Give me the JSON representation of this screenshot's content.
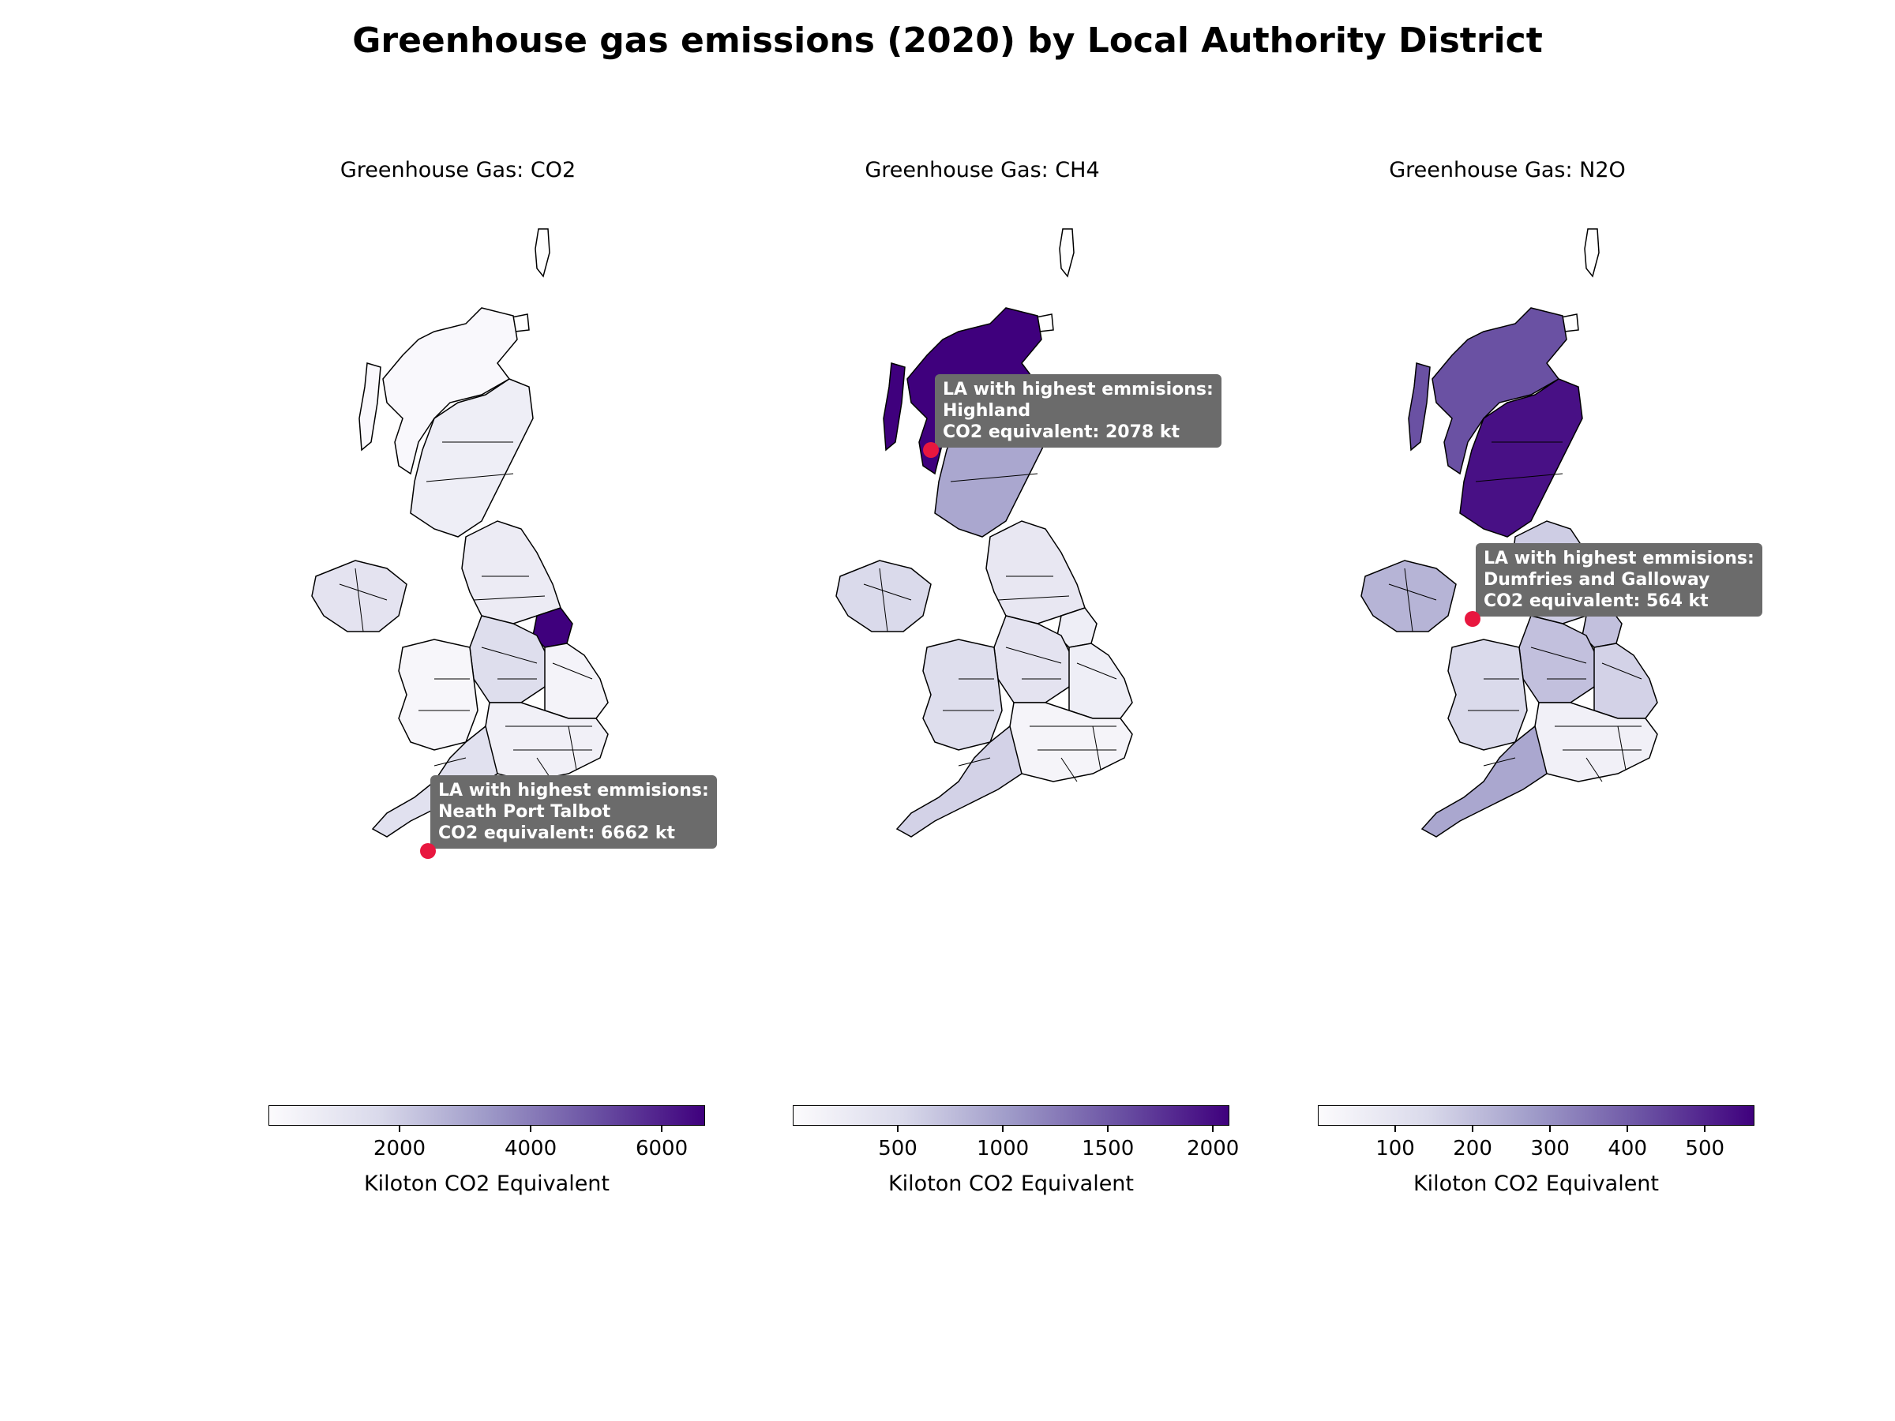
{
  "title": "Greenhouse gas emissions (2020) by Local Authority District",
  "colors": {
    "scale_low": "#fcfbfd",
    "scale_mid": "#9e9ac8",
    "scale_high": "#3f007d",
    "highlight_marker": "#e8173f",
    "callout_bg": "#6b6b6b",
    "border": "#000000"
  },
  "panels": [
    {
      "title": "Greenhouse Gas: CO2",
      "gas": "CO2",
      "scale_min": 0,
      "scale_max": 6662,
      "colorbar_ticks": [
        {
          "value": 2000,
          "label": "2000"
        },
        {
          "value": 4000,
          "label": "4000"
        },
        {
          "value": 6000,
          "label": "6000"
        }
      ],
      "colorbar_label": "Kiloton CO2 Equivalent",
      "callout": {
        "line1": "LA with highest emmisions:",
        "line2": "Neath Port Talbot",
        "line3": "CO2 equivalent: 6662 kt"
      },
      "highlight_region": "Neath Port Talbot",
      "region_shading": {
        "scotland_north": 0.02,
        "scotland_south": 0.1,
        "northern_ireland": 0.18,
        "north_england": 0.12,
        "humber": 1.0,
        "midlands": 0.22,
        "wales": 0.04,
        "southwest": 0.2,
        "southeast": 0.08,
        "east": 0.06
      }
    },
    {
      "title": "Greenhouse Gas: CH4",
      "gas": "CH4",
      "scale_min": 0,
      "scale_max": 2078,
      "colorbar_ticks": [
        {
          "value": 500,
          "label": "500"
        },
        {
          "value": 1000,
          "label": "1000"
        },
        {
          "value": 1500,
          "label": "1500"
        },
        {
          "value": 2000,
          "label": "2000"
        }
      ],
      "colorbar_label": "Kiloton CO2 Equivalent",
      "callout": {
        "line1": "LA with highest emmisions:",
        "line2": "Highland",
        "line3": "CO2 equivalent: 2078 kt"
      },
      "highlight_region": "Highland",
      "region_shading": {
        "scotland_north": 1.0,
        "scotland_south": 0.45,
        "northern_ireland": 0.25,
        "north_england": 0.15,
        "humber": 0.1,
        "midlands": 0.18,
        "wales": 0.22,
        "southwest": 0.28,
        "southeast": 0.05,
        "east": 0.1
      }
    },
    {
      "title": "Greenhouse Gas: N2O",
      "gas": "N2O",
      "scale_min": 0,
      "scale_max": 564,
      "colorbar_ticks": [
        {
          "value": 100,
          "label": "100"
        },
        {
          "value": 200,
          "label": "200"
        },
        {
          "value": 300,
          "label": "300"
        },
        {
          "value": 400,
          "label": "400"
        },
        {
          "value": 500,
          "label": "500"
        }
      ],
      "colorbar_label": "Kiloton CO2 Equivalent",
      "callout": {
        "line1": "LA with highest emmisions:",
        "line2": "Dumfries and Galloway",
        "line3": "CO2 equivalent: 564 kt"
      },
      "highlight_region": "Dumfries and Galloway",
      "region_shading": {
        "scotland_north": 0.75,
        "scotland_south": 0.95,
        "northern_ireland": 0.4,
        "north_england": 0.3,
        "humber": 0.35,
        "midlands": 0.35,
        "wales": 0.25,
        "southwest": 0.45,
        "southeast": 0.08,
        "east": 0.28
      }
    }
  ]
}
